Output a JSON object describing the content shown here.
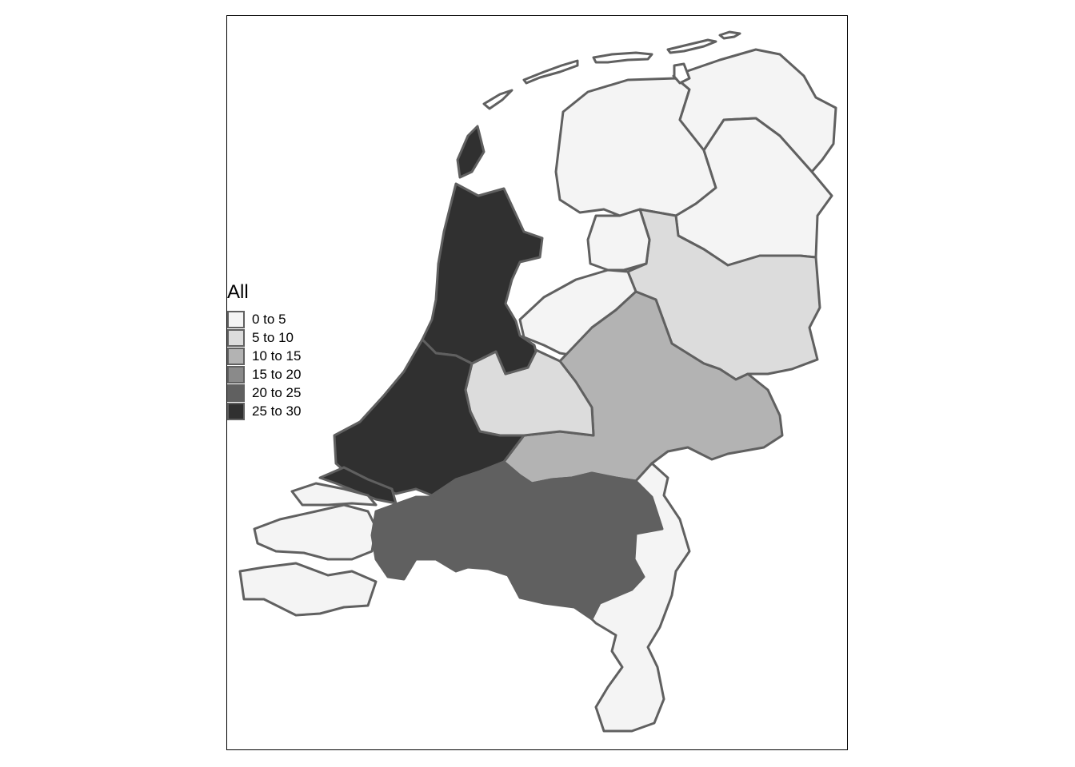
{
  "legend": {
    "title": "All",
    "classes": [
      {
        "label": "0 to 5",
        "color": "#f4f4f4"
      },
      {
        "label": "5 to 10",
        "color": "#dcdcdc"
      },
      {
        "label": "10 to 15",
        "color": "#b3b3b3"
      },
      {
        "label": "15 to 20",
        "color": "#8a8a8a"
      },
      {
        "label": "20 to 25",
        "color": "#606060"
      },
      {
        "label": "25 to 30",
        "color": "#303030"
      }
    ]
  },
  "regions": [
    {
      "name": "Groningen",
      "class": 0
    },
    {
      "name": "Friesland",
      "class": 0
    },
    {
      "name": "Drenthe",
      "class": 0
    },
    {
      "name": "Overijssel",
      "class": 1
    },
    {
      "name": "Flevoland",
      "class": 0
    },
    {
      "name": "Gelderland",
      "class": 2
    },
    {
      "name": "Utrecht",
      "class": 1
    },
    {
      "name": "Noord-Holland",
      "class": 5
    },
    {
      "name": "Zuid-Holland",
      "class": 5
    },
    {
      "name": "Zeeland",
      "class": 0
    },
    {
      "name": "Noord-Brabant",
      "class": 4
    },
    {
      "name": "Limburg",
      "class": 0
    }
  ]
}
